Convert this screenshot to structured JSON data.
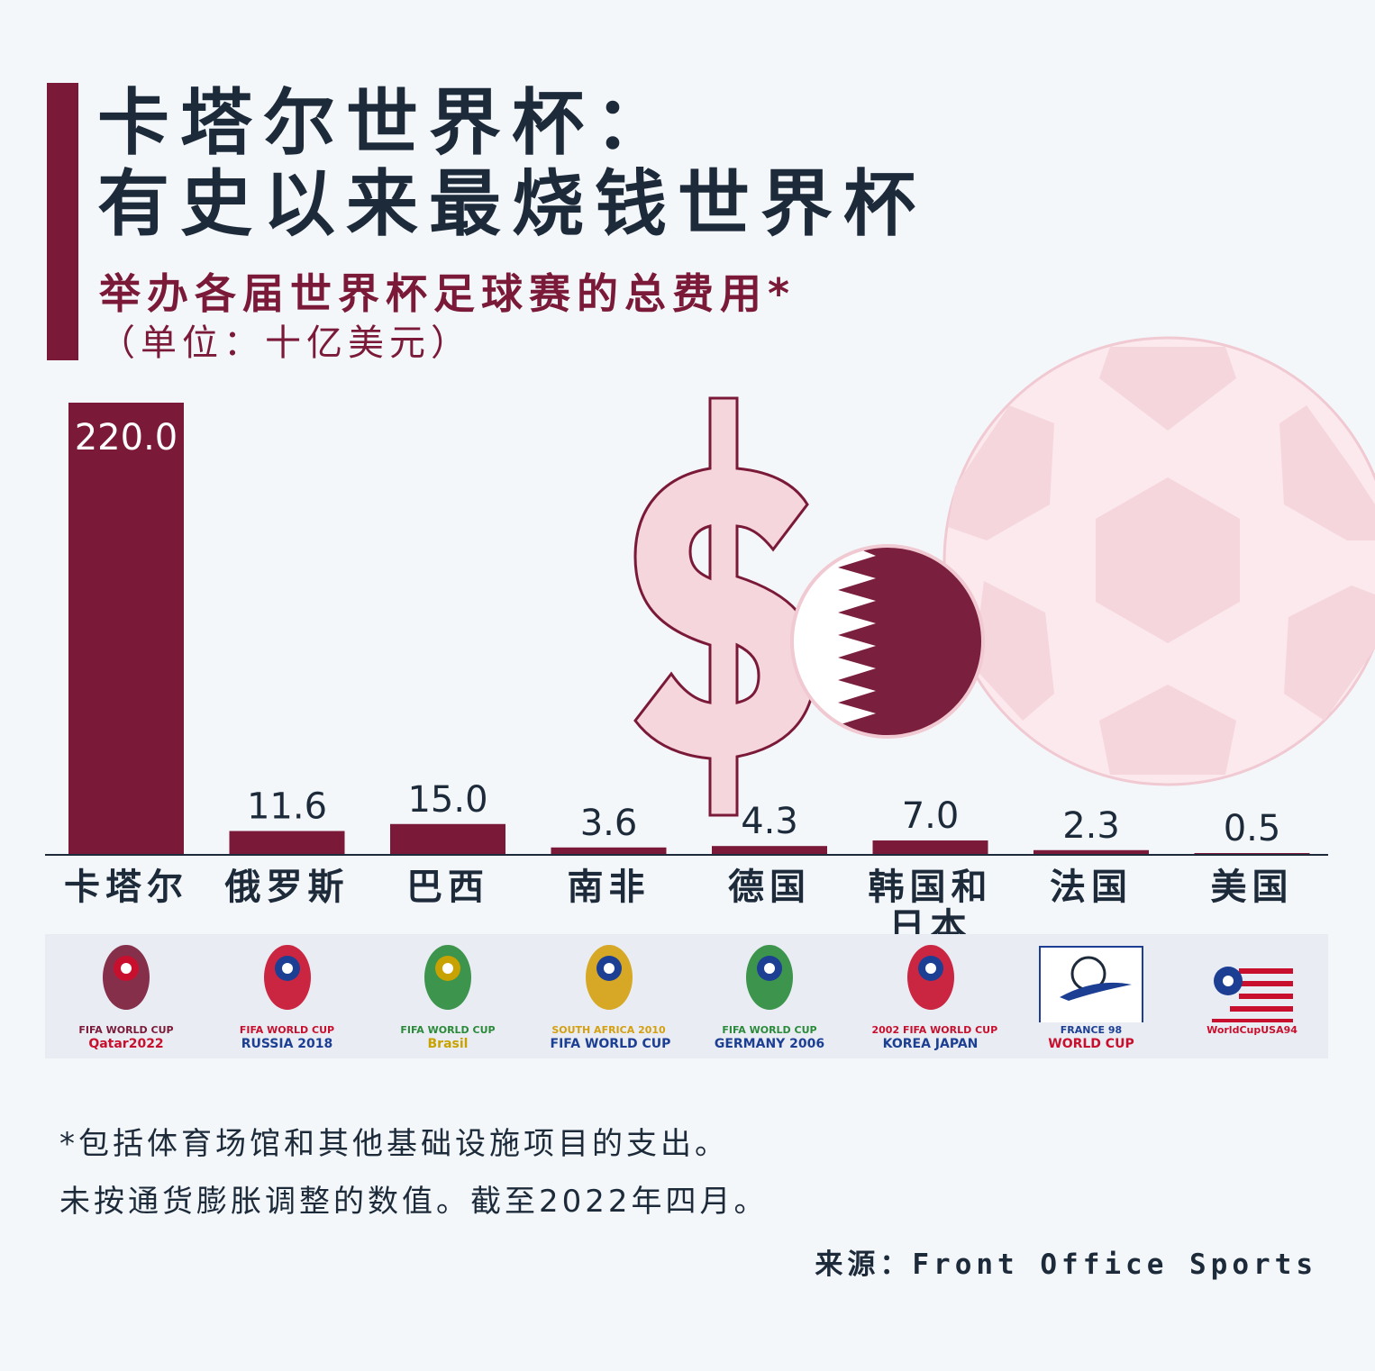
{
  "header": {
    "title_line1": "卡塔尔世界杯：",
    "title_line2": "有史以来最烧钱世界杯",
    "subtitle": "举办各届世界杯足球赛的总费用*",
    "unit": "（单位：十亿美元）"
  },
  "colors": {
    "accent": "#7a1a38",
    "text": "#1c2a3a",
    "background": "#f4f7fa",
    "pink": "#f5d6dd"
  },
  "chart_data": {
    "type": "bar",
    "categories": [
      "卡塔尔",
      "俄罗斯",
      "巴西",
      "南非",
      "德国",
      "韩国和日本",
      "法国",
      "美国"
    ],
    "category_lines": [
      [
        "卡塔尔"
      ],
      [
        "俄罗斯"
      ],
      [
        "巴西"
      ],
      [
        "南非"
      ],
      [
        "德国"
      ],
      [
        "韩国和",
        "日本"
      ],
      [
        "法国"
      ],
      [
        "美国"
      ]
    ],
    "values": [
      220.0,
      11.6,
      15.0,
      3.6,
      4.3,
      7.0,
      2.3,
      0.5
    ],
    "value_labels": [
      "220.0",
      "11.6",
      "15.0",
      "3.6",
      "4.3",
      "7.0",
      "2.3",
      "0.5"
    ],
    "ylim": [
      0,
      220
    ],
    "grid": false,
    "legend": "none"
  },
  "logos": [
    {
      "icon": "qatar-2022-logo-icon",
      "line1": "FIFA WORLD CUP",
      "line2": "Qatar2022"
    },
    {
      "icon": "russia-2018-logo-icon",
      "line1": "FIFA WORLD CUP",
      "line2": "RUSSIA 2018"
    },
    {
      "icon": "brasil-2014-logo-icon",
      "line1": "FIFA WORLD CUP",
      "line2": "Brasil"
    },
    {
      "icon": "south-africa-2010-logo-icon",
      "line1": "SOUTH AFRICA 2010",
      "line2": "FIFA WORLD CUP"
    },
    {
      "icon": "germany-2006-logo-icon",
      "line1": "FIFA WORLD CUP",
      "line2": "GERMANY 2006"
    },
    {
      "icon": "korea-japan-2002-logo-icon",
      "line1": "2002 FIFA WORLD CUP",
      "line2": "KOREA JAPAN"
    },
    {
      "icon": "france-98-logo-icon",
      "line1": "FRANCE 98",
      "line2": "WORLD CUP"
    },
    {
      "icon": "usa-94-logo-icon",
      "line1": "WorldCupUSA94",
      "line2": ""
    }
  ],
  "footnotes": {
    "line1": "*包括体育场馆和其他基础设施项目的支出。",
    "line2": "未按通货膨胀调整的数值。截至2022年四月。"
  },
  "source": "来源：Front Office Sports",
  "decor": {
    "dollar_icon": "dollar-sign-icon",
    "flag_icon": "qatar-flag-icon",
    "ball_icon": "soccer-ball-icon"
  }
}
